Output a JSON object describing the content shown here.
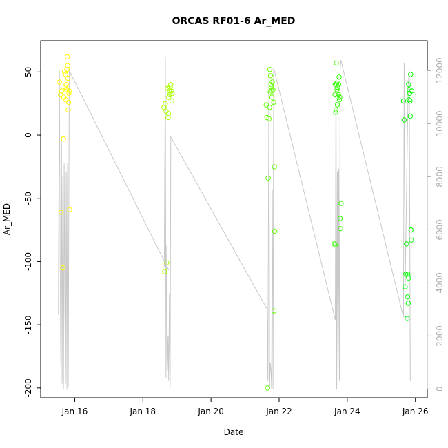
{
  "chart_data": {
    "type": "scatter",
    "title": "ORCAS RF01-6 Ar_MED",
    "xlabel": "Date",
    "ylabel": "Ar_MED",
    "x_ticks": [
      {
        "day": 16,
        "label": "Jan 16"
      },
      {
        "day": 18,
        "label": "Jan 18"
      },
      {
        "day": 20,
        "label": "Jan 20"
      },
      {
        "day": 22,
        "label": "Jan 22"
      },
      {
        "day": 24,
        "label": "Jan 24"
      },
      {
        "day": 26,
        "label": "Jan 26"
      }
    ],
    "xlim": [
      15.0,
      26.35
    ],
    "ylim": [
      -205,
      72
    ],
    "y_ticks": [
      -200,
      -150,
      -100,
      -50,
      0,
      50
    ],
    "y2lim": [
      -200,
      13000
    ],
    "y2_ticks": [
      0,
      2000,
      4000,
      6000,
      8000,
      10000,
      12000
    ],
    "y2_color": "#b0b0b0",
    "grid": false,
    "scatter_series": [
      {
        "color": "#ffff00",
        "points": [
          [
            15.55,
            42
          ],
          [
            15.58,
            32
          ],
          [
            15.6,
            -61
          ],
          [
            15.62,
            35
          ],
          [
            15.65,
            -105
          ],
          [
            15.67,
            -3
          ],
          [
            15.68,
            30
          ],
          [
            15.7,
            50
          ],
          [
            15.72,
            38
          ],
          [
            15.73,
            48
          ],
          [
            15.74,
            28
          ],
          [
            15.75,
            40
          ],
          [
            15.76,
            36
          ],
          [
            15.77,
            52
          ],
          [
            15.78,
            62
          ],
          [
            15.79,
            55
          ],
          [
            15.8,
            45
          ],
          [
            15.81,
            20
          ],
          [
            15.82,
            26
          ],
          [
            15.83,
            33
          ],
          [
            15.84,
            35
          ],
          [
            15.85,
            -59
          ]
        ]
      },
      {
        "color": "#aaff00",
        "points": [
          [
            18.62,
            22
          ],
          [
            18.64,
            -108
          ],
          [
            18.66,
            25
          ],
          [
            18.68,
            19
          ],
          [
            18.7,
            -101
          ],
          [
            18.72,
            37
          ],
          [
            18.74,
            14
          ],
          [
            18.75,
            17
          ],
          [
            18.76,
            30
          ],
          [
            18.78,
            35
          ],
          [
            18.79,
            32
          ],
          [
            18.8,
            38
          ],
          [
            18.82,
            40
          ],
          [
            18.84,
            35
          ],
          [
            18.85,
            27
          ],
          [
            18.86,
            33
          ]
        ]
      },
      {
        "color": "#66ff00",
        "points": [
          [
            21.62,
            24
          ],
          [
            21.64,
            14
          ],
          [
            21.66,
            -200
          ],
          [
            21.68,
            -34
          ],
          [
            21.7,
            13
          ],
          [
            21.72,
            22
          ],
          [
            21.73,
            52
          ],
          [
            21.74,
            34
          ],
          [
            21.75,
            47
          ],
          [
            21.76,
            40
          ],
          [
            21.77,
            38
          ],
          [
            21.78,
            35
          ],
          [
            21.79,
            30
          ],
          [
            21.8,
            42
          ],
          [
            21.82,
            36
          ],
          [
            21.84,
            26
          ],
          [
            21.85,
            -139
          ],
          [
            21.86,
            -25
          ],
          [
            21.87,
            -76
          ]
        ]
      },
      {
        "color": "#33ff00",
        "points": [
          [
            23.62,
            -86
          ],
          [
            23.64,
            32
          ],
          [
            23.65,
            40
          ],
          [
            23.66,
            18
          ],
          [
            23.67,
            20
          ],
          [
            23.68,
            57
          ],
          [
            23.69,
            41
          ],
          [
            23.7,
            36
          ],
          [
            23.71,
            24
          ],
          [
            23.72,
            38
          ],
          [
            23.73,
            30
          ],
          [
            23.74,
            32
          ],
          [
            23.75,
            40
          ],
          [
            23.76,
            46
          ],
          [
            23.77,
            28
          ],
          [
            23.78,
            30
          ],
          [
            23.79,
            -66
          ],
          [
            23.8,
            -74
          ],
          [
            23.82,
            -54
          ],
          [
            23.65,
            -87
          ]
        ]
      },
      {
        "color": "#00ff00",
        "points": [
          [
            25.65,
            27
          ],
          [
            25.67,
            12
          ],
          [
            25.7,
            -120
          ],
          [
            25.72,
            -110
          ],
          [
            25.74,
            -86
          ],
          [
            25.76,
            -145
          ],
          [
            25.77,
            -128
          ],
          [
            25.78,
            -110
          ],
          [
            25.79,
            -133
          ],
          [
            25.8,
            -113
          ],
          [
            25.8,
            40
          ],
          [
            25.81,
            28
          ],
          [
            25.82,
            36
          ],
          [
            25.83,
            33
          ],
          [
            25.84,
            27
          ],
          [
            25.85,
            15
          ],
          [
            25.86,
            48
          ],
          [
            25.87,
            -75
          ],
          [
            25.88,
            -83
          ],
          [
            25.89,
            35
          ]
        ]
      }
    ],
    "line_series": {
      "color": "#c8c8c8",
      "axis": "right",
      "points": [
        [
          15.52,
          2800
        ],
        [
          15.55,
          12000
        ],
        [
          15.57,
          5000
        ],
        [
          15.59,
          1000
        ],
        [
          15.61,
          9500
        ],
        [
          15.63,
          200
        ],
        [
          15.65,
          8000
        ],
        [
          15.67,
          0
        ],
        [
          15.69,
          8500
        ],
        [
          15.71,
          3000
        ],
        [
          15.73,
          200
        ],
        [
          15.75,
          8200
        ],
        [
          15.77,
          0
        ],
        [
          15.79,
          8500
        ],
        [
          15.81,
          100
        ],
        [
          15.84,
          12000
        ],
        [
          18.75,
          4500
        ],
        [
          18.63,
          4600
        ],
        [
          18.66,
          12500
        ],
        [
          18.68,
          400
        ],
        [
          18.7,
          5400
        ],
        [
          18.72,
          700
        ],
        [
          18.74,
          2000
        ],
        [
          18.76,
          300
        ],
        [
          18.78,
          3600
        ],
        [
          18.8,
          0
        ],
        [
          18.82,
          9500
        ],
        [
          21.65,
          3000
        ],
        [
          21.67,
          300
        ],
        [
          21.7,
          12000
        ],
        [
          21.72,
          0
        ],
        [
          21.74,
          1000
        ],
        [
          21.76,
          700
        ],
        [
          21.78,
          0
        ],
        [
          21.8,
          7500
        ],
        [
          21.82,
          0
        ],
        [
          21.84,
          12100
        ],
        [
          23.65,
          2600
        ],
        [
          23.67,
          12000
        ],
        [
          23.69,
          0
        ],
        [
          23.71,
          8200
        ],
        [
          23.73,
          0
        ],
        [
          23.75,
          8300
        ],
        [
          23.77,
          300
        ],
        [
          23.79,
          12000
        ],
        [
          23.81,
          12400
        ],
        [
          25.65,
          2700
        ],
        [
          25.67,
          12300
        ],
        [
          25.7,
          4000
        ],
        [
          25.73,
          6500
        ],
        [
          25.76,
          9000
        ],
        [
          25.79,
          11500
        ],
        [
          25.82,
          12000
        ],
        [
          25.85,
          300
        ]
      ]
    }
  }
}
